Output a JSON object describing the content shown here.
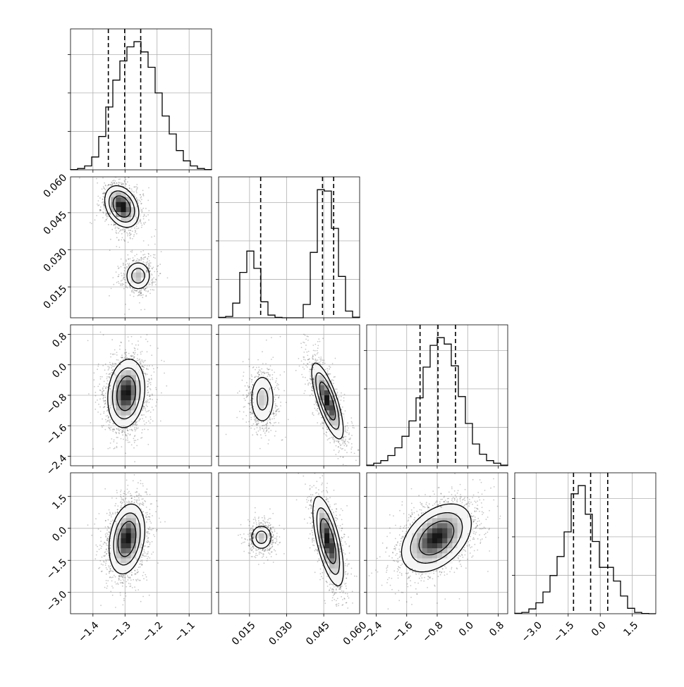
{
  "chart_data": {
    "type": "corner",
    "parameters": 4,
    "axis_labels": [
      "",
      "",
      "",
      ""
    ],
    "ranges": [
      [
        -1.47,
        -1.03
      ],
      [
        0.0025,
        0.0595
      ],
      [
        -2.65,
        1.05
      ],
      [
        -4.0,
        2.6
      ]
    ],
    "x_ticks": [
      [
        "-1.4",
        "-1.3",
        "-1.2",
        "-1.1"
      ],
      [
        "0.015",
        "0.030",
        "0.045",
        "0.060"
      ],
      [
        "-2.4",
        "-1.6",
        "-0.8",
        "0.0",
        "0.8"
      ],
      [
        "-3.0",
        "-1.5",
        "0.0",
        "1.5"
      ]
    ],
    "y_ticks": [
      [],
      [
        "0.015",
        "0.030",
        "0.045",
        "0.060"
      ],
      [
        "-2.4",
        "-1.6",
        "-0.8",
        "0.0",
        "0.8"
      ],
      [
        "-3.0",
        "-1.5",
        "0.0",
        "1.5"
      ]
    ],
    "quantile_lines": [
      [
        -1.352,
        -1.301,
        -1.251
      ],
      [
        0.0195,
        0.0445,
        0.049
      ],
      [
        -1.25,
        -0.78,
        -0.32
      ],
      [
        -1.25,
        -0.45,
        0.35
      ]
    ],
    "histograms": [
      [
        0.2,
        1.0,
        3.0,
        10.0,
        26.0,
        49.0,
        70.0,
        85.0,
        96.0,
        100.0,
        92.0,
        80.0,
        60.0,
        42.0,
        28.0,
        15.0,
        7.0,
        3.0,
        1.0,
        0.2
      ],
      [
        0.3,
        1.0,
        11.0,
        34.0,
        50.0,
        37.0,
        12.0,
        2.0,
        0.3,
        0.0,
        0.0,
        0.0,
        10.0,
        49.0,
        96.0,
        95.0,
        67.0,
        31.0,
        5.0,
        0.5
      ],
      [
        0.5,
        2.0,
        4.0,
        8.0,
        14.0,
        23.0,
        35.0,
        53.0,
        77.0,
        94.0,
        100.0,
        95.0,
        78.0,
        54.0,
        33.0,
        17.0,
        9.0,
        4.0,
        2.0,
        0.5
      ],
      [
        0.3,
        1.0,
        3.5,
        8.0,
        16.0,
        28.0,
        42.0,
        60.0,
        88.0,
        94.0,
        73.0,
        53.0,
        34.0,
        34.0,
        24.0,
        13.0,
        4.0,
        1.0,
        0.2,
        0.0
      ]
    ],
    "scatter_panels": [
      {
        "x": 0,
        "y": 1,
        "modes": [
          {
            "cx": -1.31,
            "cy": 0.0475,
            "sx": 0.0265,
            "sy": 0.0042,
            "rho": -0.3,
            "w": 1.0
          },
          {
            "cx": -1.259,
            "cy": 0.0195,
            "sx": 0.0215,
            "sy": 0.0032,
            "rho": 0.0,
            "w": 0.5
          }
        ]
      },
      {
        "x": 0,
        "y": 2,
        "modes": [
          {
            "cx": -1.296,
            "cy": -0.75,
            "sx": 0.029,
            "sy": 0.45,
            "rho": 0.15,
            "w": 1.0
          }
        ]
      },
      {
        "x": 1,
        "y": 2,
        "modes": [
          {
            "cx": 0.0202,
            "cy": -0.9,
            "sx": 0.0028,
            "sy": 0.37,
            "rho": 0.0,
            "w": 0.45
          },
          {
            "cx": 0.0465,
            "cy": -0.95,
            "sx": 0.0032,
            "sy": 0.5,
            "rho": -0.75,
            "w": 1.0
          }
        ]
      },
      {
        "x": 0,
        "y": 3,
        "modes": [
          {
            "cx": -1.294,
            "cy": -0.5,
            "sx": 0.028,
            "sy": 0.82,
            "rho": 0.25,
            "w": 1.0
          }
        ]
      },
      {
        "x": 1,
        "y": 3,
        "modes": [
          {
            "cx": 0.0198,
            "cy": -0.42,
            "sx": 0.0024,
            "sy": 0.32,
            "rho": 0.0,
            "w": 0.5
          },
          {
            "cx": 0.0468,
            "cy": -0.6,
            "sx": 0.0031,
            "sy": 1.05,
            "rho": -0.65,
            "w": 1.0
          }
        ]
      },
      {
        "x": 2,
        "y": 3,
        "modes": [
          {
            "cx": -0.82,
            "cy": -0.45,
            "sx": 0.46,
            "sy": 0.8,
            "rho": 0.42,
            "w": 1.0
          }
        ]
      }
    ],
    "grid": true,
    "legend": "none"
  }
}
